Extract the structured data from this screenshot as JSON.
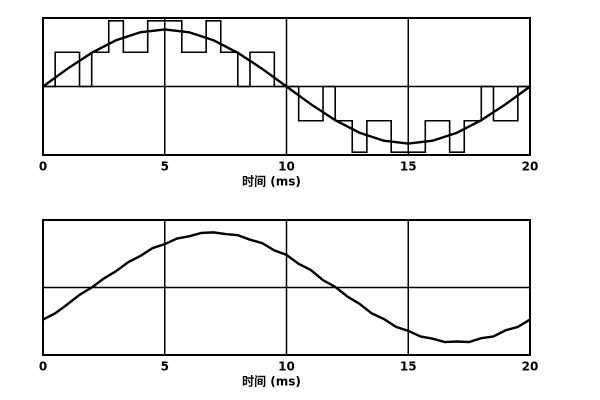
{
  "chart_data": [
    {
      "type": "line",
      "x_label": "时间 (ms)",
      "xlim": [
        0,
        20
      ],
      "ylim": [
        -1.2,
        1.2
      ],
      "xticks": [
        0,
        5,
        10,
        15,
        20
      ],
      "yticks": [
        0
      ],
      "grid": true,
      "series": [
        {
          "color": "#000000",
          "step": true,
          "x": [
            0,
            0.5,
            0.5,
            1.5,
            1.5,
            2,
            2,
            2.7,
            2.7,
            3.3,
            3.3,
            4,
            4,
            4.3,
            4.3,
            5.7,
            5.7,
            6,
            6,
            6.7,
            6.7,
            7.3,
            7.3,
            8,
            8,
            8.5,
            8.5,
            9.5,
            9.5,
            10,
            10,
            10.5,
            10.5,
            11.5,
            11.5,
            12,
            12,
            12.7,
            12.7,
            13.3,
            13.3,
            14,
            14,
            14.3,
            14.3,
            15.7,
            15.7,
            16,
            16,
            16.7,
            16.7,
            17.3,
            17.3,
            18,
            18,
            18.5,
            18.5,
            19.5,
            19.5,
            20
          ],
          "values": [
            0,
            0,
            0.6,
            0.6,
            0,
            0,
            0.6,
            0.6,
            1.15,
            1.15,
            0.6,
            0.6,
            0.6,
            0.6,
            1.15,
            1.15,
            0.6,
            0.6,
            0.6,
            0.6,
            1.15,
            1.15,
            0.6,
            0.6,
            0,
            0,
            0.6,
            0.6,
            0,
            0,
            0,
            0,
            -0.6,
            -0.6,
            0,
            0,
            -0.6,
            -0.6,
            -1.15,
            -1.15,
            -0.6,
            -0.6,
            -0.6,
            -0.6,
            -1.15,
            -1.15,
            -0.6,
            -0.6,
            -0.6,
            -0.6,
            -1.15,
            -1.15,
            -0.6,
            -0.6,
            0,
            0,
            -0.6,
            -0.6,
            0,
            0
          ]
        },
        {
          "color": "#000000",
          "x": [
            0,
            1,
            2,
            3,
            4,
            5,
            6,
            7,
            8,
            9,
            10,
            11,
            12,
            13,
            14,
            15,
            16,
            17,
            18,
            19,
            20
          ],
          "values": [
            0,
            0.31,
            0.59,
            0.81,
            0.95,
            1,
            0.95,
            0.81,
            0.59,
            0.31,
            0,
            -0.31,
            -0.59,
            -0.81,
            -0.95,
            -1,
            -0.95,
            -0.81,
            -0.59,
            -0.31,
            0
          ]
        }
      ]
    },
    {
      "type": "line",
      "x_label": "时间 (ms)",
      "xlim": [
        0,
        20
      ],
      "ylim": [
        -1.2,
        1.2
      ],
      "xticks": [
        0,
        5,
        10,
        15,
        20
      ],
      "yticks": [
        0
      ],
      "grid": true,
      "series": [
        {
          "color": "#000000",
          "x": [
            0,
            0.5,
            1,
            1.5,
            2,
            2.5,
            3,
            3.5,
            4,
            4.5,
            5,
            5.5,
            6,
            6.5,
            7,
            7.5,
            8,
            8.5,
            9,
            9.5,
            10,
            10.5,
            11,
            11.5,
            12,
            12.5,
            13,
            13.5,
            14,
            14.5,
            15,
            15.5,
            16,
            16.5,
            17,
            17.5,
            18,
            18.5,
            19,
            19.5,
            20
          ],
          "values": [
            -0.57,
            -0.46,
            -0.3,
            -0.13,
            0,
            0.16,
            0.29,
            0.45,
            0.56,
            0.7,
            0.77,
            0.87,
            0.91,
            0.97,
            0.98,
            0.95,
            0.93,
            0.85,
            0.79,
            0.66,
            0.58,
            0.42,
            0.31,
            0.13,
            0.01,
            -0.16,
            -0.29,
            -0.46,
            -0.56,
            -0.7,
            -0.77,
            -0.87,
            -0.91,
            -0.97,
            -0.96,
            -0.97,
            -0.9,
            -0.87,
            -0.76,
            -0.7,
            -0.57
          ]
        }
      ]
    }
  ]
}
